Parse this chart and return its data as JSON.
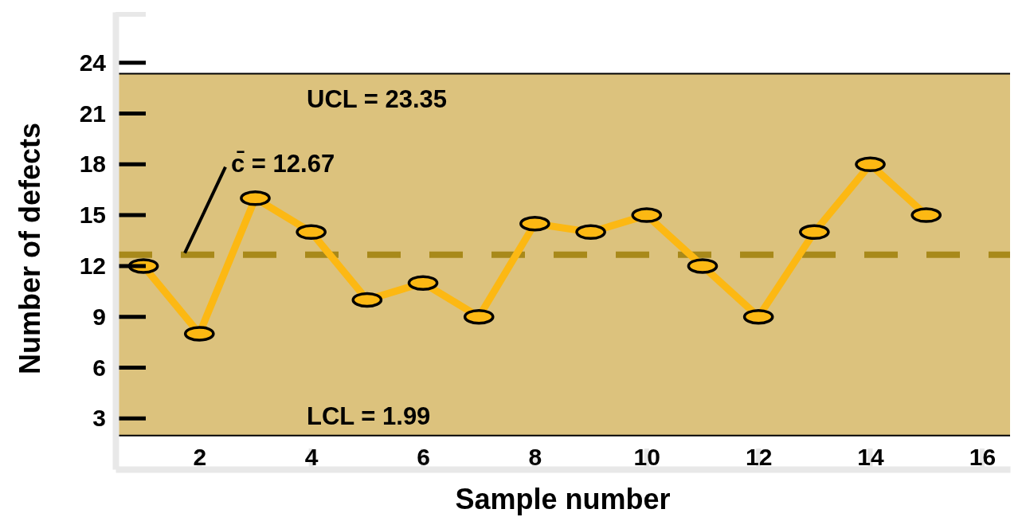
{
  "chart_data": {
    "type": "line",
    "xlabel": "Sample number",
    "ylabel": "Number of defects",
    "x": [
      1,
      2,
      3,
      4,
      5,
      6,
      7,
      8,
      9,
      10,
      11,
      12,
      13,
      14,
      15
    ],
    "series": [
      {
        "color": "#fcb813",
        "values": [
          12,
          8,
          16,
          14,
          10,
          11,
          9,
          14.5,
          14,
          15,
          12,
          9,
          14,
          18,
          15
        ]
      }
    ],
    "xlim": [
      0.5,
      16.5
    ],
    "xticks": [
      2,
      4,
      6,
      8,
      10,
      12,
      14,
      16
    ],
    "ylim": [
      0,
      27
    ],
    "yticks": [
      3,
      6,
      9,
      12,
      15,
      18,
      21,
      24
    ],
    "bands": [
      {
        "axis": "y",
        "from": 1.99,
        "to": 23.35,
        "color": "#dcc27d"
      }
    ],
    "ref_lines": [
      {
        "axis": "y",
        "value": 23.35,
        "label": "UCL = 23.35",
        "color": "#000000",
        "line_style": "solid"
      },
      {
        "axis": "y",
        "value": 12.67,
        "label": "c̄ = 12.67",
        "color": "#a8891a",
        "line_style": "dashed"
      },
      {
        "axis": "y",
        "value": 1.99,
        "label": "LCL = 1.99",
        "color": "#000000",
        "line_style": "solid"
      }
    ],
    "marker": "circle",
    "line_style": "solid",
    "grid": false
  }
}
